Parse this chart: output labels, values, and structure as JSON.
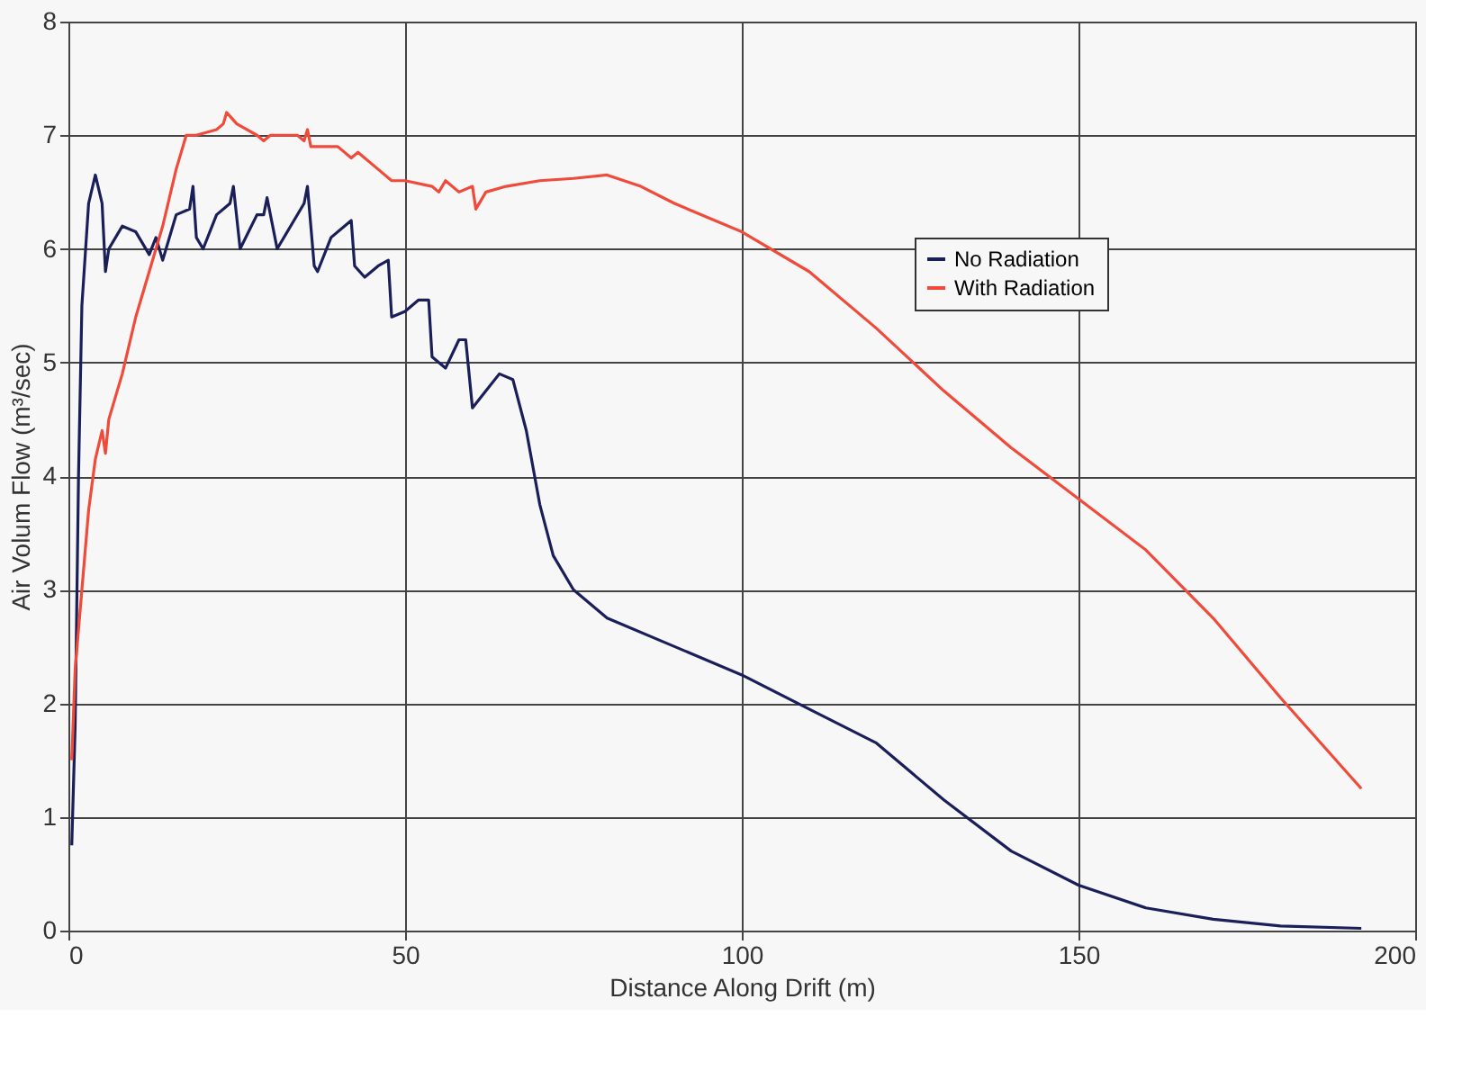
{
  "chart_data": {
    "type": "line",
    "xlabel": "Distance Along Drift  (m)",
    "ylabel": "Air Volum Flow  (m³/sec)",
    "xlim": [
      0,
      200
    ],
    "xticks": [
      0,
      50,
      100,
      150,
      200
    ],
    "ylim": [
      0,
      8
    ],
    "yticks": [
      0,
      1,
      2,
      3,
      4,
      5,
      6,
      7,
      8
    ],
    "grid": true,
    "legend": "right",
    "marker": "none",
    "line_style": "solid",
    "series": [
      {
        "name": "No Radiation",
        "color": "#1a1f5a",
        "x": [
          0.5,
          1,
          1.5,
          2,
          3,
          4,
          5,
          5.5,
          6,
          7,
          8,
          10,
          12,
          13,
          14,
          16,
          18,
          18.5,
          19,
          20,
          22,
          24,
          24.5,
          25.5,
          28,
          29,
          29.5,
          31,
          33,
          35,
          35.5,
          36.5,
          37,
          39,
          42,
          42.5,
          44,
          46,
          47.5,
          48,
          50,
          52,
          53.5,
          54,
          56,
          58,
          59,
          60,
          62,
          64,
          66,
          68,
          70,
          72,
          75,
          80,
          90,
          100,
          110,
          120,
          130,
          140,
          150,
          160,
          170,
          180,
          192
        ],
        "values": [
          0.75,
          1.8,
          4,
          5.5,
          6.4,
          6.65,
          6.4,
          5.8,
          6.0,
          6.1,
          6.2,
          6.15,
          5.95,
          6.1,
          5.9,
          6.3,
          6.35,
          6.55,
          6.1,
          6.0,
          6.3,
          6.4,
          6.55,
          6.0,
          6.3,
          6.3,
          6.45,
          6.0,
          6.2,
          6.4,
          6.55,
          5.85,
          5.8,
          6.1,
          6.25,
          5.85,
          5.75,
          5.85,
          5.9,
          5.4,
          5.45,
          5.55,
          5.55,
          5.05,
          4.95,
          5.2,
          5.2,
          4.6,
          4.75,
          4.9,
          4.85,
          4.4,
          3.75,
          3.3,
          3.0,
          2.75,
          2.5,
          2.25,
          1.95,
          1.65,
          1.15,
          0.7,
          0.4,
          0.2,
          0.1,
          0.04,
          0.02
        ]
      },
      {
        "name": "With Radiation",
        "color": "#f04a3a",
        "x": [
          0.5,
          1,
          2,
          3,
          4,
          5,
          5.5,
          6,
          8,
          10,
          12,
          14,
          16,
          17,
          17.5,
          19,
          22,
          23,
          23.5,
          25,
          28,
          29,
          30,
          34,
          35,
          35.5,
          36,
          40,
          42,
          43,
          46,
          48,
          50,
          54,
          55,
          56,
          58,
          60,
          60.5,
          62,
          65,
          70,
          75,
          80,
          85,
          90,
          100,
          110,
          120,
          130,
          140,
          150,
          160,
          170,
          180,
          186,
          192
        ],
        "values": [
          1.5,
          2.3,
          3.0,
          3.7,
          4.15,
          4.4,
          4.2,
          4.5,
          4.9,
          5.4,
          5.8,
          6.2,
          6.7,
          6.9,
          7.0,
          7.0,
          7.05,
          7.1,
          7.2,
          7.1,
          7.0,
          6.95,
          7.0,
          7.0,
          6.95,
          7.05,
          6.9,
          6.9,
          6.8,
          6.85,
          6.7,
          6.6,
          6.6,
          6.55,
          6.5,
          6.6,
          6.5,
          6.55,
          6.35,
          6.5,
          6.55,
          6.6,
          6.62,
          6.65,
          6.55,
          6.4,
          6.15,
          5.8,
          5.3,
          4.75,
          4.25,
          3.8,
          3.35,
          2.75,
          2.05,
          1.65,
          1.25
        ]
      }
    ]
  }
}
